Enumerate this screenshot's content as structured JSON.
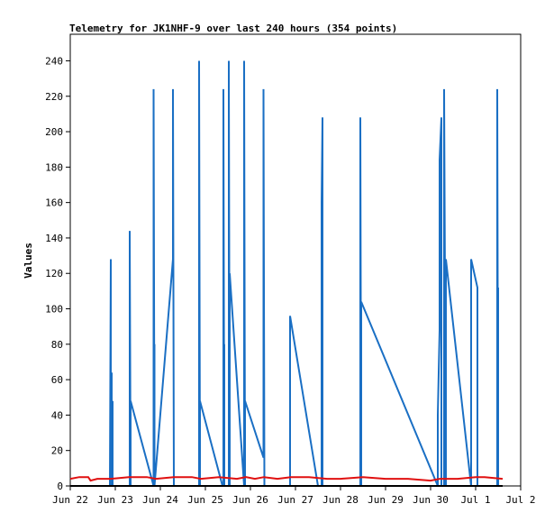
{
  "chart_data": {
    "type": "line",
    "title": "Telemetry for JK1NHF-9 over last 240 hours (354 points)",
    "xlabel": "",
    "ylabel": "Values",
    "x_domain": [
      "Jun 22",
      "Jul 2"
    ],
    "ylim": [
      0,
      255
    ],
    "yticks": [
      0,
      20,
      40,
      60,
      80,
      100,
      120,
      140,
      160,
      180,
      200,
      220,
      240
    ],
    "xticks": [
      "Jun 22",
      "Jun 23",
      "Jun 24",
      "Jun 25",
      "Jun 26",
      "Jun 27",
      "Jun 28",
      "Jun 29",
      "Jun 30",
      "Jul 1",
      "Jul 2"
    ],
    "grid": false,
    "legend": "none",
    "series": [
      {
        "color": "#1a6fc4",
        "x": [
          0.0,
          0.88,
          0.9,
          0.9,
          0.92,
          0.92,
          0.94,
          0.94,
          1.32,
          1.32,
          1.34,
          1.34,
          1.85,
          1.85,
          1.87,
          1.87,
          1.87,
          2.28,
          2.28,
          2.3,
          2.3,
          2.86,
          2.86,
          2.88,
          2.88,
          3.38,
          3.4,
          3.4,
          3.42,
          3.42,
          3.42,
          3.52,
          3.52,
          3.54,
          3.54,
          3.86,
          3.86,
          3.88,
          3.88,
          4.29,
          4.29,
          4.31,
          4.31,
          4.88,
          4.88,
          5.5,
          5.58,
          5.58,
          5.6,
          5.6,
          5.62,
          6.44,
          6.44,
          6.46,
          6.46,
          8.16,
          8.16,
          8.2,
          8.2,
          8.24,
          8.24,
          8.26,
          8.3,
          8.3,
          8.34,
          8.34,
          8.9,
          8.9,
          9.04,
          9.04,
          9.3,
          9.48,
          9.48,
          9.5,
          9.5
        ],
        "y": [
          0,
          0,
          128,
          0,
          64,
          0,
          48,
          0,
          0,
          144,
          0,
          48,
          0,
          224,
          0,
          80,
          0,
          128,
          224,
          0,
          0,
          0,
          240,
          0,
          48,
          0,
          0,
          224,
          0,
          80,
          0,
          0,
          240,
          0,
          120,
          0,
          240,
          0,
          48,
          16,
          224,
          0,
          0,
          0,
          96,
          0,
          0,
          160,
          208,
          0,
          0,
          0,
          208,
          0,
          104,
          0,
          40,
          88,
          184,
          208,
          0,
          0,
          0,
          224,
          0,
          128,
          0,
          128,
          112,
          0,
          0,
          0,
          224,
          0,
          112
        ]
      },
      {
        "color": "#e01010",
        "x": [
          0.0,
          0.2,
          0.4,
          0.45,
          0.6,
          0.9,
          1.3,
          1.7,
          1.9,
          2.3,
          2.7,
          2.9,
          3.3,
          3.7,
          3.9,
          4.1,
          4.3,
          4.6,
          4.9,
          5.3,
          5.7,
          6.0,
          6.5,
          7.0,
          7.5,
          8.0,
          8.2,
          8.6,
          9.0,
          9.2,
          9.6
        ],
        "y": [
          4,
          5,
          5,
          3,
          4,
          4,
          5,
          5,
          4,
          5,
          5,
          4,
          5,
          4,
          5,
          4,
          5,
          4,
          5,
          5,
          4,
          4,
          5,
          4,
          4,
          3,
          4,
          4,
          5,
          5,
          4
        ]
      },
      {
        "color": "#000000",
        "x": [
          0.0,
          9.6
        ],
        "y": [
          0,
          0
        ]
      }
    ]
  }
}
